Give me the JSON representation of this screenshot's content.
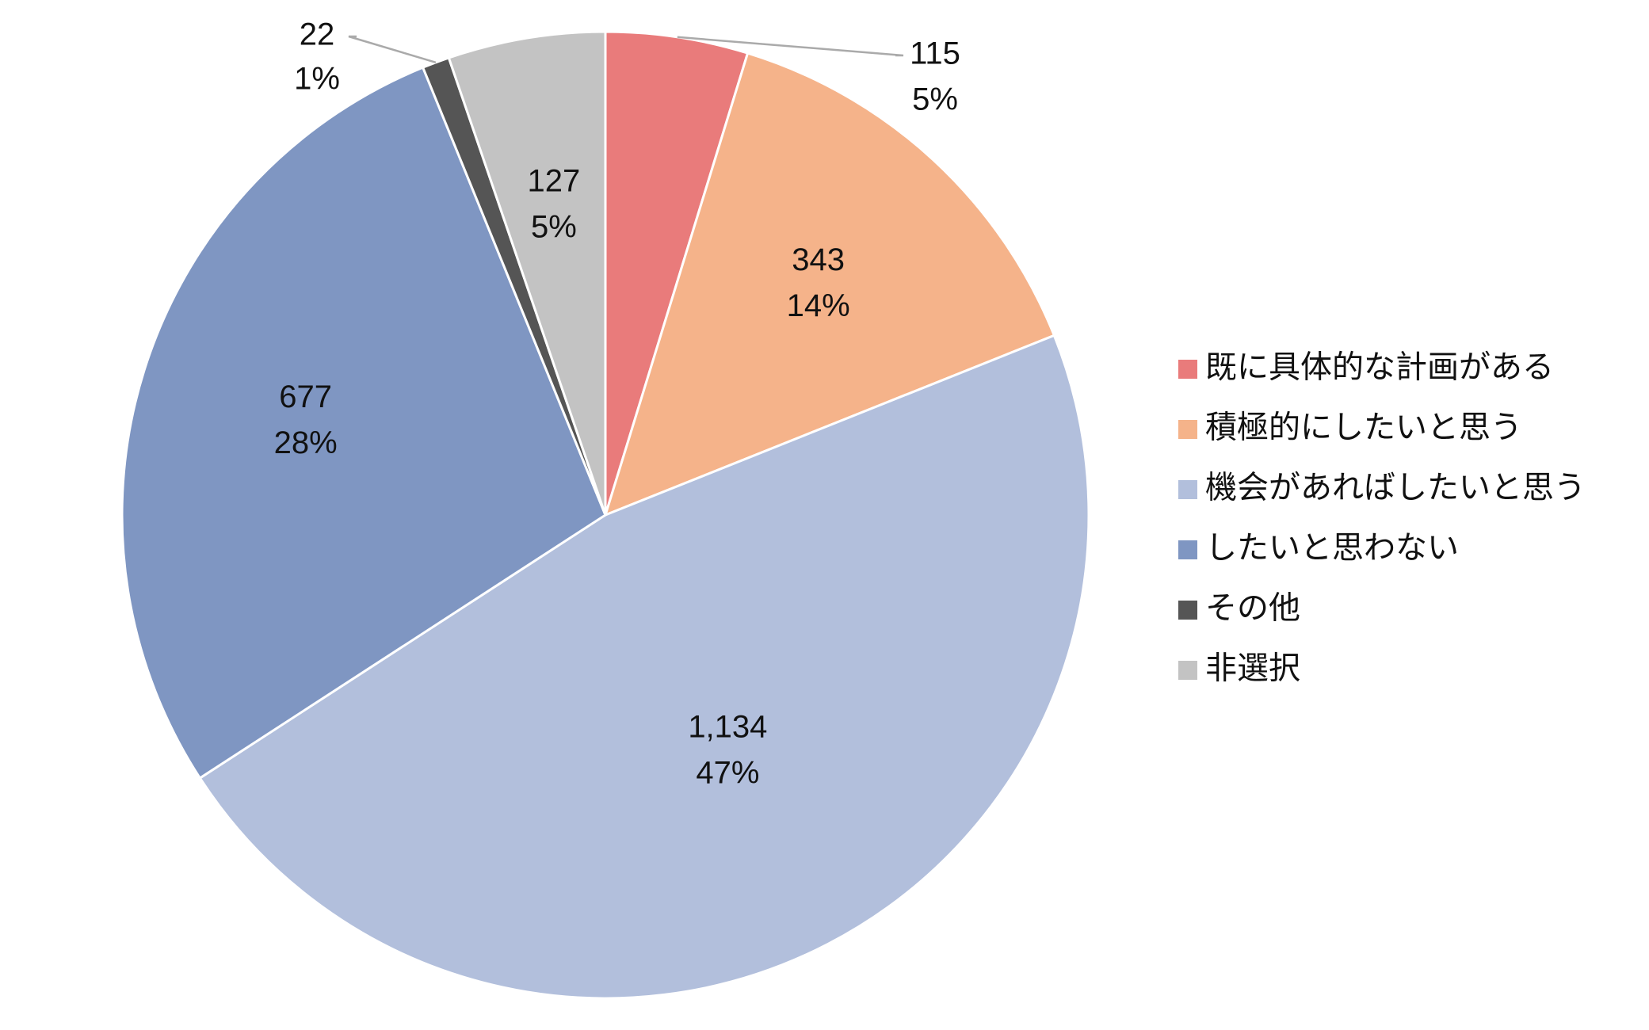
{
  "chart_data": {
    "type": "pie",
    "categories": [
      "既に具体的な計画がある",
      "積極的にしたいと思う",
      "機会があればしたいと思う",
      "したいと思わない",
      "その他",
      "非選択"
    ],
    "values": [
      115,
      343,
      1134,
      677,
      22,
      127
    ],
    "value_labels": [
      "115",
      "343",
      "1,134",
      "677",
      "22",
      "127"
    ],
    "percent_labels": [
      "5%",
      "14%",
      "47%",
      "28%",
      "1%",
      "5%"
    ],
    "colors": [
      "#e97b7b",
      "#f5b38a",
      "#b2bfdc",
      "#7f96c2",
      "#555555",
      "#c3c3c3"
    ],
    "legend": "right"
  }
}
